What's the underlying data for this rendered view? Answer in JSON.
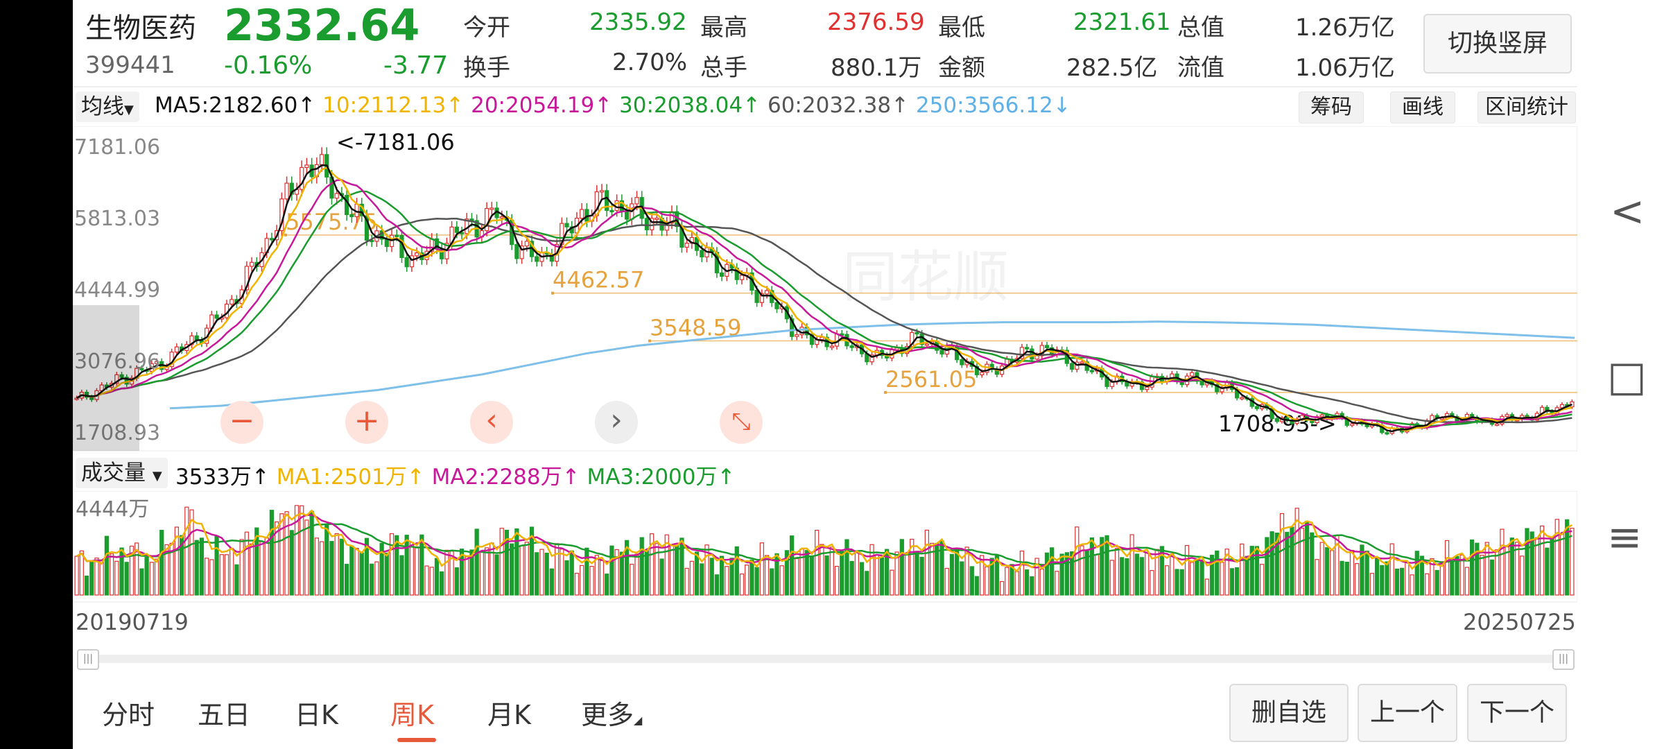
{
  "stock": {
    "name": "生物医药",
    "code": "399441",
    "price": "2332.64",
    "change_pct": "-0.16%",
    "change": "-3.77",
    "open_label": "今开",
    "open": "2335.92",
    "high_label": "最高",
    "high": "2376.59",
    "low_label": "最低",
    "low": "2321.61",
    "total_value_label": "总值",
    "total_value": "1.26万亿",
    "turnover_label": "换手",
    "turnover": "2.70%",
    "total_hands_label": "总手",
    "total_hands": "880.1万",
    "amount_label": "金额",
    "amount": "282.5亿",
    "float_value_label": "流值",
    "float_value": "1.06万亿",
    "switch_button": "切换竖屏"
  },
  "ma_bar": {
    "dropdown": "均线",
    "ma5": "MA5:2182.60",
    "ma10": "10:2112.13",
    "ma20": "20:2054.19",
    "ma30": "30:2038.04",
    "ma60": "60:2032.38",
    "ma250": "250:3566.12",
    "arrow_up": "↑",
    "arrow_down": "↓",
    "buttons": [
      "筹码",
      "画线",
      "区间统计"
    ]
  },
  "colors": {
    "up": "#e03030",
    "down": "#1a9c2e",
    "ma5": "#111111",
    "ma10": "#f0b400",
    "ma20": "#c8189a",
    "ma30": "#1a9c2e",
    "ma60": "#555555",
    "ma250": "#7fc0ea",
    "level": "#e6a23c"
  },
  "chart_data": {
    "type": "candlestick",
    "price_ticks": [
      "7181.06",
      "5813.03",
      "4444.99",
      "3076.96",
      "1708.93"
    ],
    "annotations": [
      {
        "label": "<-7181.06",
        "value": 7181.06
      },
      {
        "label": "5575.75",
        "value": 5575.75
      },
      {
        "label": "4462.57",
        "value": 4462.57
      },
      {
        "label": "3548.59",
        "value": 3548.59
      },
      {
        "label": "2561.05",
        "value": 2561.05
      },
      {
        "label": "1708.93->",
        "value": 1708.93
      }
    ],
    "x_start": "20190719",
    "x_end": "20250725",
    "ylim": [
      1708.93,
      7181.06
    ],
    "price_points": [
      2300,
      2500,
      2700,
      2850,
      3000,
      3300,
      3600,
      4000,
      4600,
      5300,
      6200,
      6900,
      6500,
      5900,
      5500,
      5300,
      5000,
      5200,
      5500,
      5700,
      5900,
      5200,
      5000,
      5400,
      5900,
      6100,
      6000,
      5800,
      5700,
      5400,
      5000,
      4800,
      4500,
      4200,
      3700,
      3400,
      3500,
      3300,
      3100,
      3300,
      3500,
      3300,
      3100,
      2800,
      3000,
      3200,
      3300,
      3100,
      2900,
      2700,
      2600,
      2650,
      2750,
      2700,
      2600,
      2450,
      2200,
      1950,
      1900,
      2000,
      1950,
      1850,
      1750,
      1720,
      1900,
      2000,
      1950,
      1900,
      1950,
      2000,
      2100,
      2300
    ],
    "ma250_points": [
      2150,
      2200,
      2300,
      2400,
      2500,
      2650,
      2800,
      3000,
      3200,
      3350,
      3450,
      3550,
      3650,
      3700,
      3750,
      3780,
      3800,
      3800,
      3800,
      3810,
      3800,
      3780,
      3750,
      3700,
      3650,
      3600,
      3550,
      3500
    ],
    "volume_label": "成交量",
    "volume_value": "3533万",
    "volume_ma1": "MA1:2501万",
    "volume_ma2": "MA2:2288万",
    "volume_ma3": "MA3:2000万",
    "volume_tick": "4444万",
    "volume_values": [
      0.35,
      0.4,
      0.5,
      0.45,
      0.4,
      0.6,
      0.9,
      0.5,
      0.45,
      0.55,
      0.7,
      0.85,
      0.95,
      0.75,
      0.6,
      0.5,
      0.45,
      0.55,
      0.65,
      0.4,
      0.35,
      0.5,
      0.55,
      0.6,
      0.7,
      0.5,
      0.45,
      0.4,
      0.35,
      0.45,
      0.5,
      0.55,
      0.6,
      0.45,
      0.4,
      0.38,
      0.36,
      0.4,
      0.42,
      0.5,
      0.55,
      0.48,
      0.44,
      0.4,
      0.45,
      0.5,
      0.6,
      0.5,
      0.4,
      0.35,
      0.33,
      0.3,
      0.35,
      0.4,
      0.55,
      0.6,
      0.5,
      0.48,
      0.45,
      0.4,
      0.38,
      0.36,
      0.4,
      0.42,
      0.5,
      0.7,
      0.9,
      0.6,
      0.5,
      0.45,
      0.4,
      0.38,
      0.35,
      0.34,
      0.4,
      0.45,
      0.5,
      0.55,
      0.6,
      0.65,
      0.7,
      0.75
    ]
  },
  "zoom_controls": [
    "−",
    "+",
    "‹",
    "›",
    "⤡"
  ],
  "bottom_tabs": [
    "分时",
    "五日",
    "日K",
    "周K",
    "月K",
    "更多"
  ],
  "active_tab": "周K",
  "bottom_buttons": [
    "删自选",
    "上一个",
    "下一个"
  ],
  "side_nav": {
    "back": "<",
    "home": "□",
    "menu": "≡"
  },
  "watermark": "同花顺"
}
